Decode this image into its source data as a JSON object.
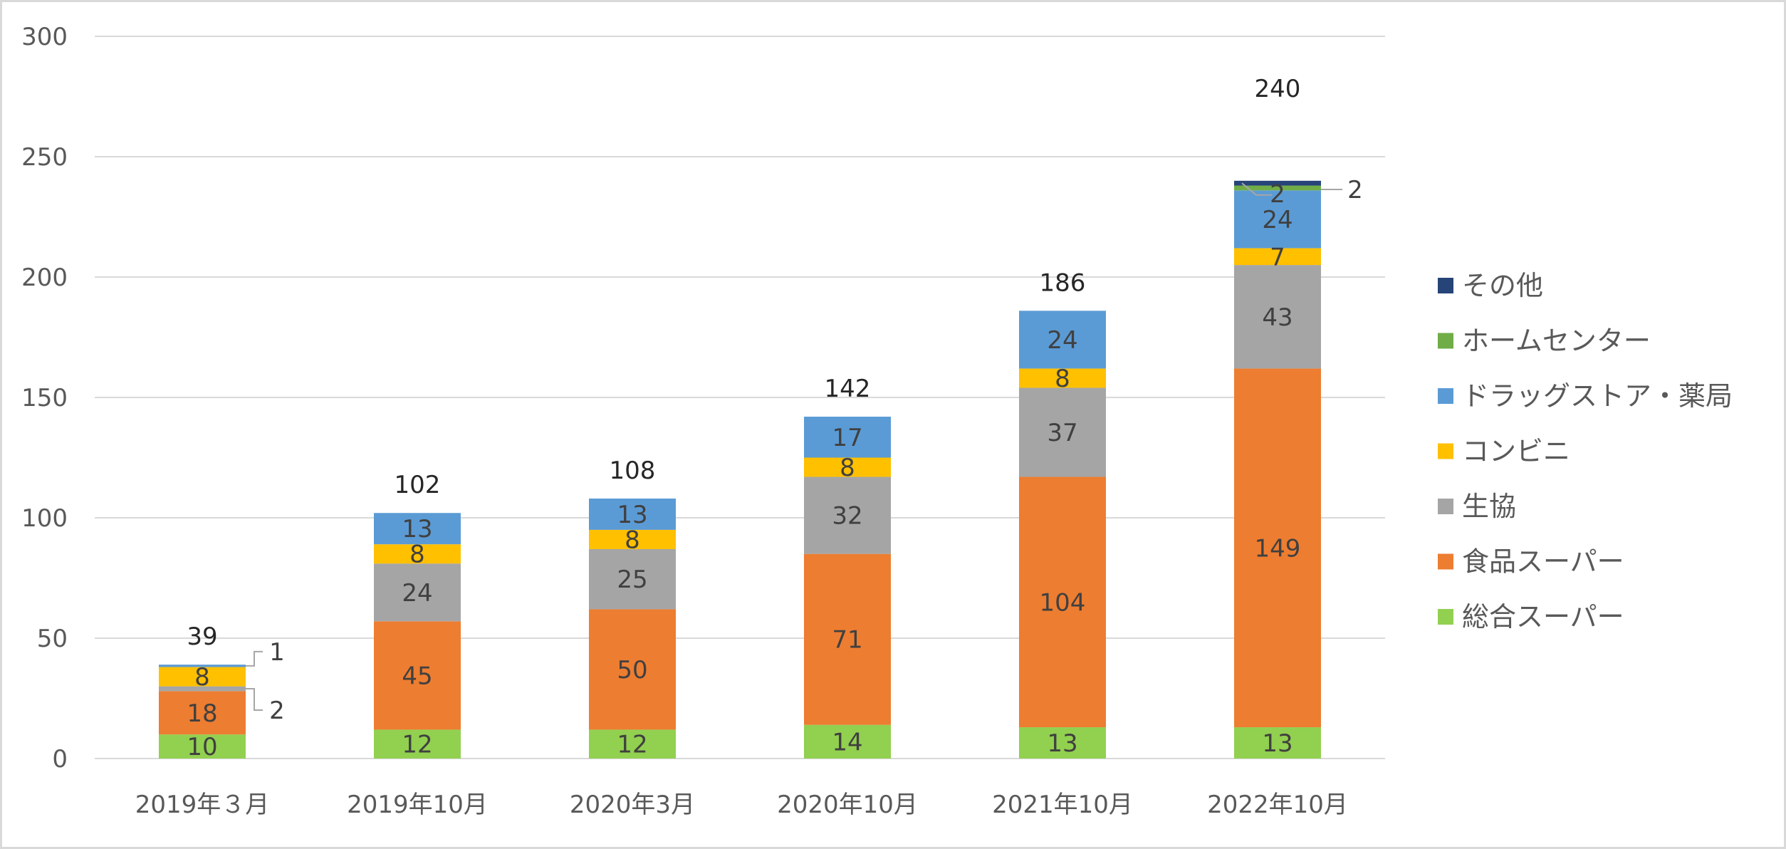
{
  "chart_data": {
    "type": "bar",
    "stacked": true,
    "title": "",
    "xlabel": "",
    "ylabel": "",
    "ylim": [
      0,
      300
    ],
    "yticks": [
      0,
      50,
      100,
      150,
      200,
      250,
      300
    ],
    "grid": true,
    "legend_position": "right",
    "categories": [
      "2019年３月",
      "2019年10月",
      "2020年3月",
      "2020年10月",
      "2021年10月",
      "2022年10月"
    ],
    "totals": [
      39,
      102,
      108,
      142,
      186,
      240
    ],
    "series": [
      {
        "name": "総合スーパー",
        "color": "#92d050",
        "values": [
          10,
          12,
          12,
          14,
          13,
          13
        ]
      },
      {
        "name": "食品スーパー",
        "color": "#ed7d31",
        "values": [
          18,
          45,
          50,
          71,
          104,
          149
        ]
      },
      {
        "name": "生協",
        "color": "#a5a5a5",
        "values": [
          2,
          24,
          25,
          32,
          37,
          43
        ]
      },
      {
        "name": "コンビニ",
        "color": "#ffc000",
        "values": [
          8,
          8,
          8,
          8,
          8,
          7
        ]
      },
      {
        "name": "ドラッグストア・薬局",
        "color": "#5b9bd5",
        "values": [
          1,
          13,
          13,
          17,
          24,
          24
        ]
      },
      {
        "name": "ホームセンター",
        "color": "#70ad47",
        "values": [
          0,
          0,
          0,
          0,
          0,
          2
        ]
      },
      {
        "name": "その他",
        "color": "#264478",
        "values": [
          0,
          0,
          0,
          0,
          0,
          2
        ]
      }
    ]
  }
}
